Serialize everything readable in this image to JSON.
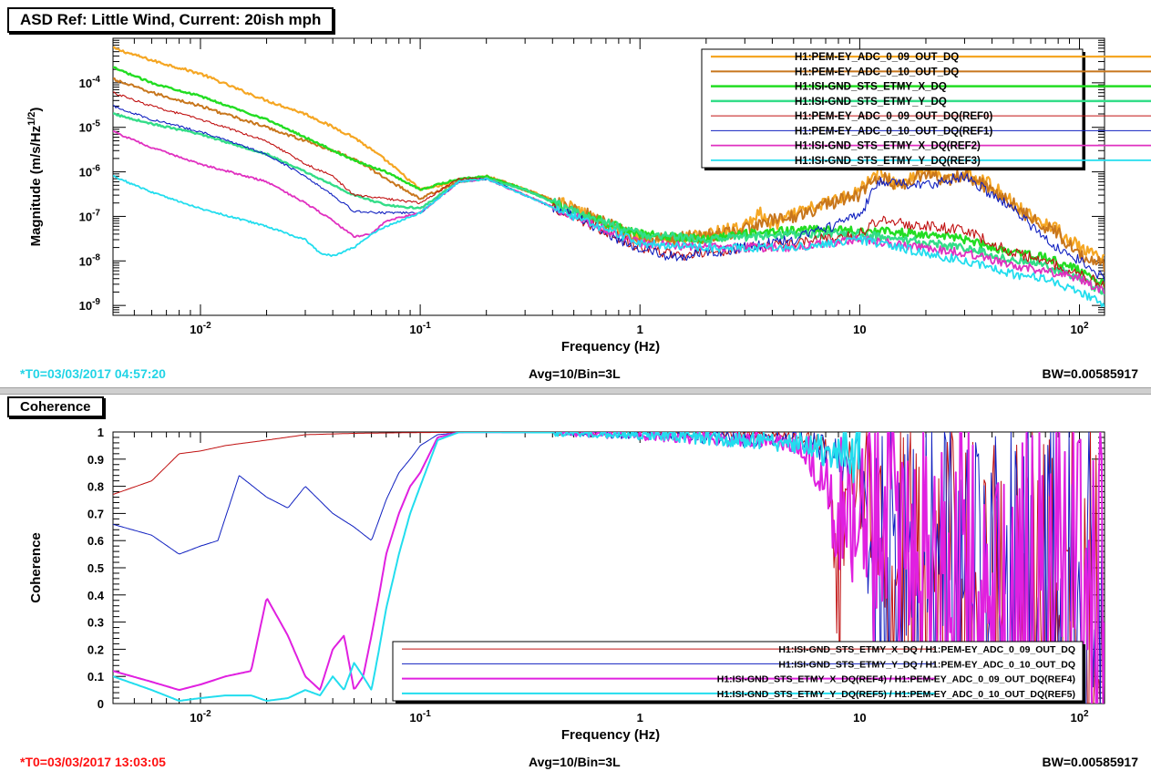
{
  "panels": {
    "asd": {
      "title": "ASD Ref: Little Wind, Current: 20ish mph",
      "footer_left": "*T0=03/03/2017 04:57:20",
      "footer_center": "Avg=10/Bin=3L",
      "footer_right": "BW=0.00585917",
      "footer_left_color": "#22d4e6"
    },
    "coh": {
      "title": "Coherence",
      "footer_left": "*T0=03/03/2017 13:03:05",
      "footer_center": "Avg=10/Bin=3L",
      "footer_right": "BW=0.00585917",
      "footer_left_color": "#ff1111"
    }
  },
  "chart_data": [
    {
      "type": "line",
      "title": "ASD Ref: Little Wind, Current: 20ish mph",
      "xlabel": "Frequency (Hz)",
      "ylabel": "Magnitude (m/s/Hz^1/2)",
      "ylabel_parts": {
        "base": "Magnitude (m/s/Hz",
        "sup": "1/2",
        "end": ")"
      },
      "xscale": "log",
      "yscale": "log",
      "xlim": [
        0.004,
        130
      ],
      "ylim": [
        6e-10,
        0.001
      ],
      "xticks": [
        {
          "value": 0.01,
          "base": "10",
          "exp": "-2"
        },
        {
          "value": 0.1,
          "base": "10",
          "exp": "-1"
        },
        {
          "value": 1,
          "base": "1",
          "exp": ""
        },
        {
          "value": 10,
          "base": "10",
          "exp": ""
        },
        {
          "value": 100,
          "base": "10",
          "exp": "2"
        }
      ],
      "yticks": [
        {
          "value": 1e-09,
          "base": "10",
          "exp": "-9"
        },
        {
          "value": 1e-08,
          "base": "10",
          "exp": "-8"
        },
        {
          "value": 1e-07,
          "base": "10",
          "exp": "-7"
        },
        {
          "value": 1e-06,
          "base": "10",
          "exp": "-6"
        },
        {
          "value": 1e-05,
          "base": "10",
          "exp": "-5"
        },
        {
          "value": 0.0001,
          "base": "10",
          "exp": "-4"
        }
      ],
      "legend_position": "top-right",
      "series": [
        {
          "name": "H1:PEM-EY_ADC_0_09_OUT_DQ",
          "color": "#f5a623",
          "width": 2.2,
          "noise": 0.12,
          "x": [
            0.004,
            0.006,
            0.01,
            0.015,
            0.02,
            0.03,
            0.05,
            0.07,
            0.1,
            0.15,
            0.2,
            0.3,
            0.5,
            0.7,
            1,
            1.5,
            2,
            3,
            3.5,
            4,
            5,
            7,
            10,
            12,
            15,
            20,
            25,
            30,
            40,
            50,
            60,
            80,
            100,
            120,
            130
          ],
          "y": [
            0.0006,
            0.00032,
            0.00016,
            7e-05,
            4e-05,
            2e-05,
            6e-06,
            1.8e-06,
            4e-07,
            6e-07,
            8e-07,
            4e-07,
            1.5e-07,
            6e-08,
            3.5e-08,
            3e-08,
            4e-08,
            6e-08,
            1.2e-07,
            6e-08,
            1.1e-07,
            2e-07,
            4e-07,
            1e-06,
            5e-07,
            1.2e-06,
            6e-07,
            1e-06,
            5e-07,
            2e-07,
            1e-07,
            5e-08,
            2e-08,
            1.2e-08,
            1e-08
          ]
        },
        {
          "name": "H1:PEM-EY_ADC_0_10_OUT_DQ",
          "color": "#c8761c",
          "width": 2.0,
          "noise": 0.13,
          "x": [
            0.004,
            0.006,
            0.01,
            0.02,
            0.03,
            0.05,
            0.07,
            0.1,
            0.15,
            0.2,
            0.3,
            0.5,
            1,
            2,
            3,
            4,
            5,
            7,
            10,
            12,
            15,
            20,
            25,
            30,
            40,
            50,
            60,
            80,
            100,
            120,
            130
          ],
          "y": [
            0.00012,
            6e-05,
            3e-05,
            1e-05,
            5e-06,
            2e-06,
            7e-07,
            2.5e-07,
            6e-07,
            8e-07,
            4e-07,
            1.5e-07,
            3e-08,
            3.5e-08,
            5e-08,
            8e-08,
            1e-07,
            1.8e-07,
            3e-07,
            8e-07,
            5e-07,
            1e-06,
            6e-07,
            9e-07,
            4e-07,
            2e-07,
            9e-08,
            4e-08,
            1.5e-08,
            1e-08,
            8e-09
          ]
        },
        {
          "name": "H1:ISI-GND_STS_ETMY_X_DQ",
          "color": "#22dd22",
          "width": 2.4,
          "noise": 0.08,
          "x": [
            0.004,
            0.006,
            0.01,
            0.02,
            0.03,
            0.05,
            0.07,
            0.1,
            0.15,
            0.2,
            0.3,
            0.5,
            1,
            2,
            3,
            5,
            10,
            20,
            30,
            50,
            70,
            100,
            130
          ],
          "y": [
            0.00022,
            0.0001,
            5e-05,
            1.5e-05,
            6e-06,
            1.8e-06,
            1e-06,
            4e-07,
            7e-07,
            8e-07,
            4e-07,
            1.3e-07,
            4e-08,
            3e-08,
            4e-08,
            5e-08,
            5e-08,
            4e-08,
            3e-08,
            1.5e-08,
            1.2e-08,
            6e-09,
            3e-09
          ]
        },
        {
          "name": "H1:ISI-GND_STS_ETMY_Y_DQ",
          "color": "#33dd88",
          "width": 2.4,
          "noise": 0.08,
          "x": [
            0.004,
            0.006,
            0.01,
            0.02,
            0.03,
            0.05,
            0.07,
            0.1,
            0.15,
            0.2,
            0.3,
            0.5,
            1,
            2,
            3,
            5,
            10,
            20,
            30,
            50,
            70,
            100,
            130
          ],
          "y": [
            2e-05,
            1.2e-05,
            7e-06,
            2.5e-06,
            1e-06,
            3e-07,
            1.8e-07,
            1.5e-07,
            6e-07,
            7e-07,
            4e-07,
            1.3e-07,
            4e-08,
            3e-08,
            3.5e-08,
            4e-08,
            4e-08,
            2.5e-08,
            2e-08,
            1e-08,
            8e-09,
            4e-09,
            2e-09
          ]
        },
        {
          "name": "H1:PEM-EY_ADC_0_09_OUT_DQ(REF0)",
          "color": "#c01010",
          "width": 1.1,
          "noise": 0.1,
          "x": [
            0.004,
            0.006,
            0.01,
            0.02,
            0.03,
            0.04,
            0.05,
            0.07,
            0.1,
            0.15,
            0.2,
            0.3,
            0.5,
            1,
            1.5,
            2,
            3,
            5,
            10,
            12,
            20,
            30,
            50,
            70,
            100,
            130
          ],
          "y": [
            6e-05,
            3e-05,
            1.5e-05,
            5e-06,
            1.5e-06,
            8e-07,
            3e-07,
            2.5e-07,
            2e-07,
            7e-07,
            7e-07,
            3e-07,
            1e-07,
            2e-08,
            1.3e-08,
            1.5e-08,
            2e-08,
            2.5e-08,
            4e-08,
            8e-08,
            6e-08,
            5e-08,
            1.5e-08,
            1e-08,
            5e-09,
            3e-09
          ]
        },
        {
          "name": "H1:PEM-EY_ADC_0_10_OUT_DQ(REF1)",
          "color": "#1020c0",
          "width": 1.1,
          "noise": 0.1,
          "x": [
            0.004,
            0.006,
            0.01,
            0.02,
            0.03,
            0.04,
            0.05,
            0.07,
            0.1,
            0.15,
            0.2,
            0.3,
            0.5,
            1,
            1.5,
            2,
            3,
            5,
            10,
            12,
            20,
            30,
            50,
            70,
            100,
            130
          ],
          "y": [
            3e-05,
            1.5e-05,
            8e-06,
            2.5e-06,
            8e-07,
            3e-07,
            1.3e-07,
            1.2e-07,
            1.2e-07,
            6e-07,
            7e-07,
            3e-07,
            1e-07,
            1.8e-08,
            1.2e-08,
            1.5e-08,
            2e-08,
            3e-08,
            1e-07,
            6e-07,
            5e-07,
            8e-07,
            1.5e-07,
            3e-08,
            1e-08,
            4e-09
          ]
        },
        {
          "name": "H1:ISI-GND_STS_ETMY_X_DQ(REF2)",
          "color": "#e030c0",
          "width": 1.8,
          "noise": 0.08,
          "x": [
            0.004,
            0.006,
            0.01,
            0.02,
            0.03,
            0.04,
            0.05,
            0.06,
            0.07,
            0.1,
            0.15,
            0.2,
            0.3,
            0.5,
            1,
            2,
            3,
            5,
            10,
            20,
            30,
            50,
            70,
            100,
            130
          ],
          "y": [
            8e-06,
            3.5e-06,
            1.5e-06,
            6e-07,
            2e-07,
            8e-08,
            3.5e-08,
            4e-08,
            8e-08,
            1.2e-07,
            6e-07,
            7e-07,
            3e-07,
            1e-07,
            2.5e-08,
            2e-08,
            2e-08,
            2e-08,
            3e-08,
            2e-08,
            1.5e-08,
            8e-09,
            6e-09,
            4e-09,
            2e-09
          ]
        },
        {
          "name": "H1:ISI-GND_STS_ETMY_Y_DQ(REF3)",
          "color": "#22ddee",
          "width": 1.8,
          "noise": 0.08,
          "x": [
            0.004,
            0.006,
            0.01,
            0.02,
            0.025,
            0.03,
            0.035,
            0.04,
            0.05,
            0.06,
            0.07,
            0.1,
            0.15,
            0.2,
            0.3,
            0.5,
            1,
            2,
            3,
            5,
            10,
            20,
            30,
            50,
            70,
            100,
            130
          ],
          "y": [
            8e-07,
            3.5e-07,
            1.5e-07,
            6e-08,
            4e-08,
            3e-08,
            1.5e-08,
            1.3e-08,
            2e-08,
            4e-08,
            6e-08,
            1.2e-07,
            6e-07,
            7e-07,
            3e-07,
            1e-07,
            2.5e-08,
            2e-08,
            2e-08,
            2e-08,
            3e-08,
            1.5e-08,
            1e-08,
            5e-09,
            4e-09,
            2e-09,
            1e-09
          ]
        }
      ]
    },
    {
      "type": "line",
      "title": "Coherence",
      "xlabel": "Frequency (Hz)",
      "ylabel": "Coherence",
      "xscale": "log",
      "yscale": "linear",
      "xlim": [
        0.004,
        130
      ],
      "ylim": [
        0,
        1
      ],
      "xticks": [
        {
          "value": 0.01,
          "base": "10",
          "exp": "-2"
        },
        {
          "value": 0.1,
          "base": "10",
          "exp": "-1"
        },
        {
          "value": 1,
          "base": "1",
          "exp": ""
        },
        {
          "value": 10,
          "base": "10",
          "exp": ""
        },
        {
          "value": 100,
          "base": "10",
          "exp": "2"
        }
      ],
      "yticks": [
        0,
        0.1,
        0.2,
        0.3,
        0.4,
        0.5,
        0.6,
        0.7,
        0.8,
        0.9,
        1
      ],
      "ytick_labels": [
        "0",
        "0.1",
        "0.2",
        "0.3",
        "0.4",
        "0.5",
        "0.6",
        "0.7",
        "0.8",
        "0.9",
        "1"
      ],
      "legend_position": "bottom-right",
      "series": [
        {
          "name": "H1:ISI-GND_STS_ETMY_X_DQ / H1:PEM-EY_ADC_0_09_OUT_DQ",
          "color": "#c01010",
          "width": 1.0,
          "noise": 0.0,
          "x": [
            0.004,
            0.006,
            0.008,
            0.01,
            0.013,
            0.02,
            0.03,
            0.05,
            0.1,
            0.2,
            0.5,
            1,
            2,
            5,
            7,
            8,
            9,
            10,
            15,
            20,
            30,
            50,
            70,
            100,
            130
          ],
          "y": [
            0.77,
            0.82,
            0.92,
            0.93,
            0.95,
            0.97,
            0.99,
            0.995,
            0.998,
            0.999,
            0.999,
            0.999,
            0.995,
            0.99,
            0.96,
            0.5,
            0.9,
            0.8,
            0.4,
            0.5,
            0.3,
            0.4,
            0.2,
            0.3,
            0.1
          ]
        },
        {
          "name": "H1:ISI-GND_STS_ETMY_Y_DQ / H1:PEM-EY_ADC_0_10_OUT_DQ",
          "color": "#1020c0",
          "width": 1.0,
          "noise": 0.0,
          "x": [
            0.004,
            0.006,
            0.008,
            0.01,
            0.012,
            0.015,
            0.02,
            0.025,
            0.03,
            0.04,
            0.05,
            0.06,
            0.07,
            0.08,
            0.09,
            0.1,
            0.12,
            0.15,
            0.2,
            0.5,
            1,
            2,
            5,
            10,
            12,
            15,
            20,
            30,
            50,
            70,
            100,
            130
          ],
          "y": [
            0.66,
            0.62,
            0.55,
            0.58,
            0.6,
            0.84,
            0.76,
            0.72,
            0.8,
            0.7,
            0.65,
            0.6,
            0.75,
            0.85,
            0.9,
            0.95,
            0.99,
            0.998,
            0.999,
            0.998,
            0.99,
            0.98,
            0.97,
            0.9,
            0.3,
            0.6,
            0.4,
            0.5,
            0.3,
            0.4,
            0.2,
            0.1
          ]
        },
        {
          "name": "H1:ISI-GND_STS_ETMY_X_DQ(REF4) / H1:PEM-EY_ADC_0_09_OUT_DQ(REF4)",
          "color": "#e020e0",
          "width": 2.0,
          "noise": 0.0,
          "x": [
            0.004,
            0.006,
            0.008,
            0.01,
            0.013,
            0.017,
            0.02,
            0.025,
            0.03,
            0.035,
            0.04,
            0.045,
            0.05,
            0.055,
            0.06,
            0.065,
            0.07,
            0.08,
            0.09,
            0.1,
            0.12,
            0.15,
            0.2,
            0.5,
            1,
            2,
            5,
            7,
            8,
            10,
            12,
            15,
            20,
            30,
            50,
            70,
            100,
            130
          ],
          "y": [
            0.12,
            0.08,
            0.05,
            0.07,
            0.1,
            0.12,
            0.39,
            0.25,
            0.1,
            0.05,
            0.2,
            0.25,
            0.05,
            0.1,
            0.25,
            0.4,
            0.55,
            0.7,
            0.8,
            0.85,
            0.98,
            0.999,
            0.999,
            0.998,
            0.99,
            0.98,
            0.96,
            0.85,
            0.6,
            0.8,
            0.5,
            0.6,
            0.5,
            0.4,
            0.3,
            0.35,
            0.2,
            0.15
          ]
        },
        {
          "name": "H1:ISI-GND_STS_ETMY_Y_DQ(REF5) / H1:PEM-EY_ADC_0_10_OUT_DQ(REF5)",
          "color": "#22ddee",
          "width": 2.0,
          "noise": 0.0,
          "x": [
            0.004,
            0.006,
            0.008,
            0.01,
            0.013,
            0.017,
            0.02,
            0.025,
            0.03,
            0.035,
            0.04,
            0.045,
            0.05,
            0.055,
            0.06,
            0.065,
            0.07,
            0.08,
            0.09,
            0.1,
            0.12,
            0.15,
            0.2,
            0.5,
            1,
            2,
            5,
            10
          ],
          "y": [
            0.1,
            0.05,
            0.01,
            0.02,
            0.03,
            0.03,
            0.01,
            0.02,
            0.05,
            0.03,
            0.1,
            0.05,
            0.15,
            0.1,
            0.05,
            0.2,
            0.35,
            0.55,
            0.7,
            0.8,
            0.97,
            0.999,
            0.999,
            0.998,
            0.99,
            0.98,
            0.96,
            0.9
          ]
        }
      ]
    }
  ]
}
